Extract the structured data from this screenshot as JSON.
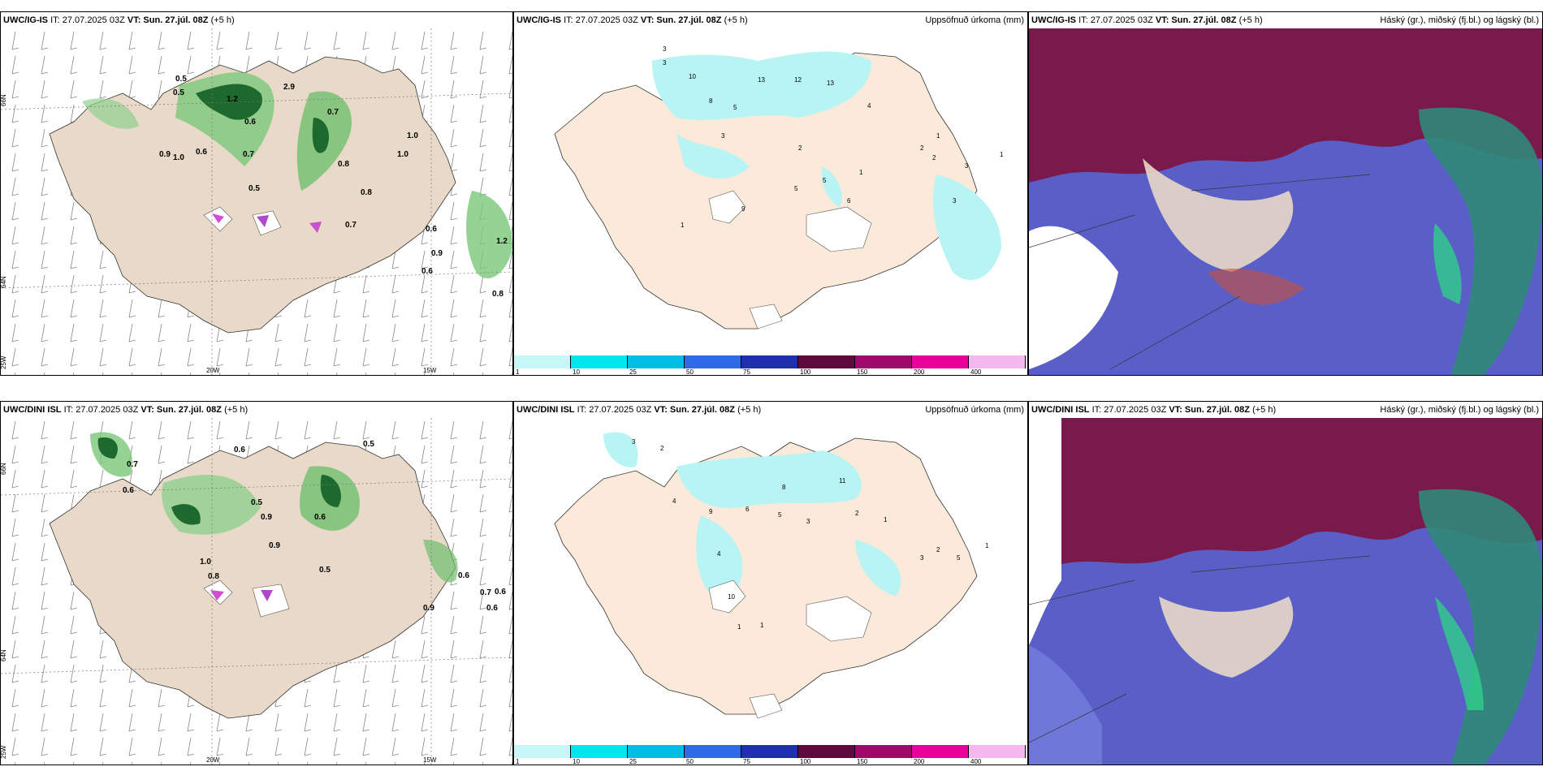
{
  "panels": [
    {
      "model": "UWC/IG-IS",
      "it": "IT: 27.07.2025 03Z",
      "vt_label": "VT:",
      "vt": "Sun. 27.júl. 08Z",
      "lead": "(+5 h)",
      "right": ""
    },
    {
      "model": "UWC/IG-IS",
      "it": "IT: 27.07.2025 03Z",
      "vt_label": "VT:",
      "vt": "Sun. 27.júl. 08Z",
      "lead": "(+5 h)",
      "right": "Uppsöfnuð úrkoma (mm)"
    },
    {
      "model": "UWC/IG-IS",
      "it": "IT: 27.07.2025 03Z",
      "vt_label": "VT:",
      "vt": "Sun. 27.júl. 08Z",
      "lead": "(+5 h)",
      "right": "Háský (gr.), miðský (fj.bl.) og lágský (bl.)"
    },
    {
      "model": "UWC/DINI ISL",
      "it": "IT: 27.07.2025 03Z",
      "vt_label": "VT:",
      "vt": "Sun. 27.júl. 08Z",
      "lead": "(+5 h)",
      "right": ""
    },
    {
      "model": "UWC/DINI ISL",
      "it": "IT: 27.07.2025 03Z",
      "vt_label": "VT:",
      "vt": "Sun. 27.júl. 08Z",
      "lead": "(+5 h)",
      "right": "Uppsöfnuð úrkoma (mm)"
    },
    {
      "model": "UWC/DINI ISL",
      "it": "IT: 27.07.2025 03Z",
      "vt_label": "VT:",
      "vt": "Sun. 27.júl. 08Z",
      "lead": "(+5 h)",
      "right": "Háský (gr.), miðský (fj.bl.) og lágský (bl.)"
    }
  ],
  "axes": {
    "lat66": "66N",
    "lat64": "64N",
    "lon25": "25W",
    "lon20": "20W",
    "lon15": "15W"
  },
  "colorbar": {
    "ticks": [
      "1",
      "10",
      "25",
      "50",
      "75",
      "100",
      "150",
      "200",
      "400"
    ],
    "colors": [
      "#c8f7f7",
      "#00e8ee",
      "#00bde6",
      "#2f6be8",
      "#1f2fb0",
      "#5e0a3c",
      "#a0086a",
      "#e8009a",
      "#f5b8ee"
    ]
  },
  "wind_labels_top": [
    "0.5",
    "0.5",
    "1.2",
    "2.9",
    "0.7",
    "1.0",
    "0.6",
    "0.9",
    "1.0",
    "0.7",
    "0.8",
    "0.6",
    "0.5",
    "0.7",
    "0.9",
    "0.8",
    "1.0",
    "0.6",
    "0.6",
    "0.8",
    "1.2"
  ],
  "wind_labels_bottom": [
    "0.5",
    "0.6",
    "0.7",
    "0.6",
    "0.5",
    "0.6",
    "0.9",
    "1.0",
    "0.8",
    "0.9",
    "0.7",
    "0.5",
    "0.6",
    "0.9",
    "0.6",
    "0.6"
  ],
  "precip_labels_top": [
    "3",
    "3",
    "10",
    "13",
    "12",
    "13",
    "4",
    "8",
    "5",
    "3",
    "2",
    "1",
    "1",
    "2",
    "3",
    "9",
    "5",
    "5",
    "6",
    "1",
    "2",
    "3",
    "1"
  ],
  "precip_labels_bottom": [
    "3",
    "2",
    "4",
    "9",
    "6",
    "5",
    "11",
    "8",
    "3",
    "2",
    "4",
    "10",
    "1",
    "1",
    "1",
    "3",
    "2",
    "5",
    "1"
  ]
}
